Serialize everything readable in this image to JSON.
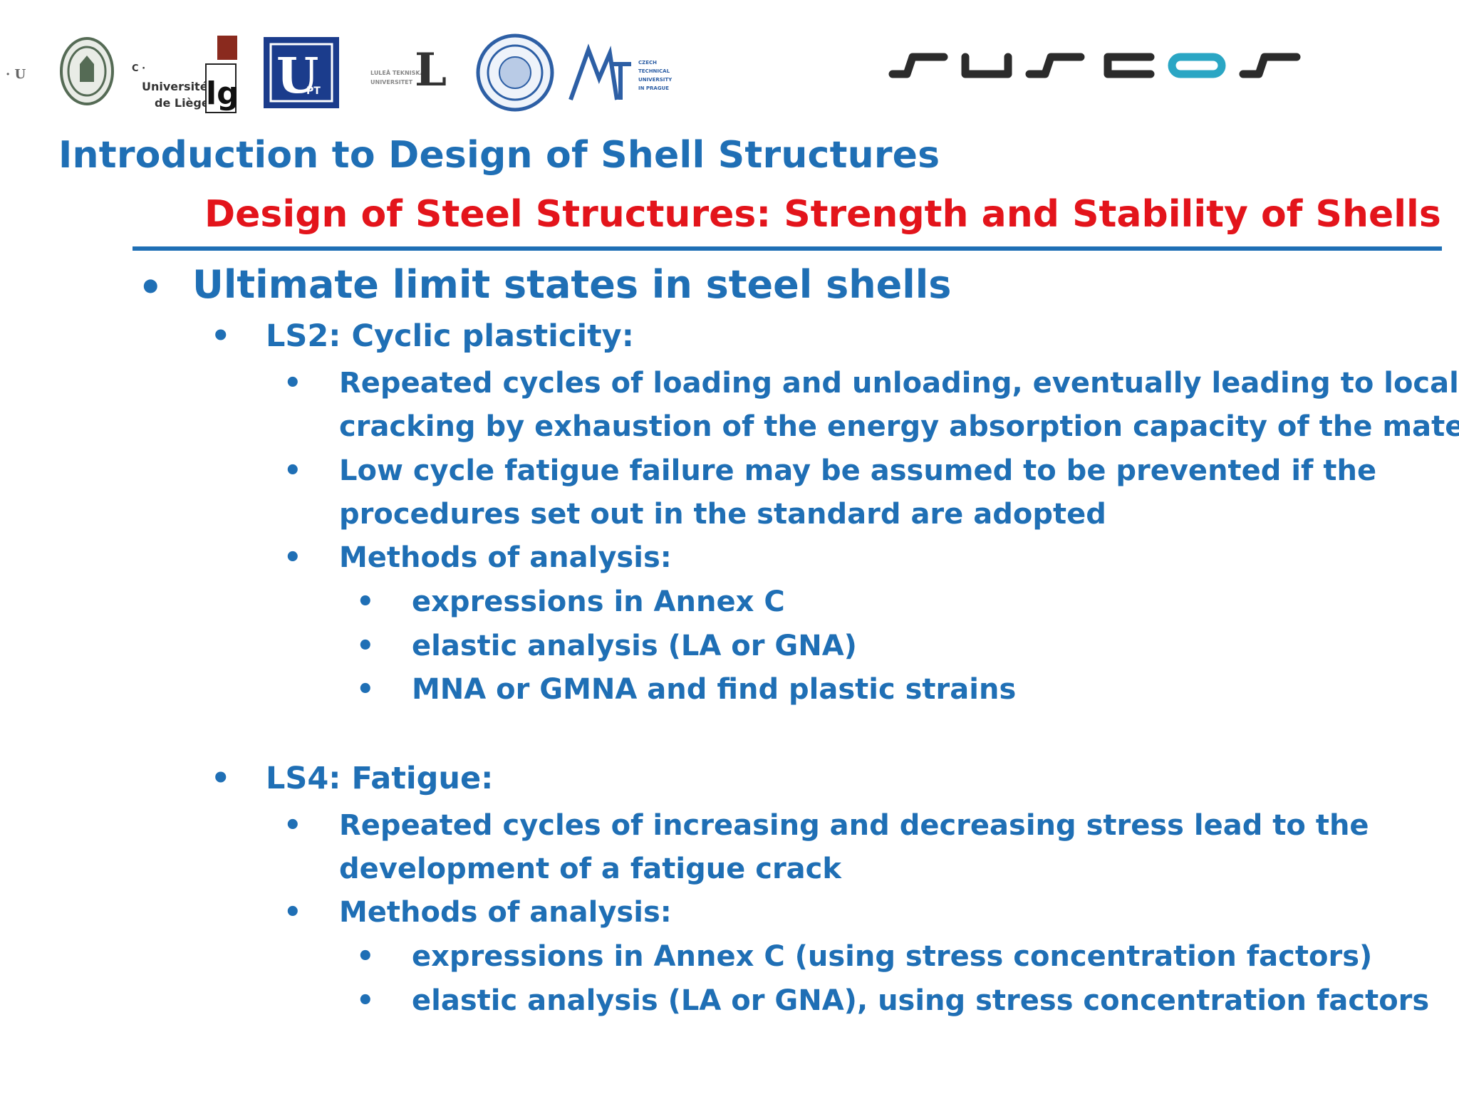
{
  "header": {
    "logos": [
      {
        "icon": "university-seal-icon"
      },
      {
        "icon": "ulg-logo-icon",
        "text": "Université de Liège"
      },
      {
        "icon": "upt-logo-icon",
        "text": "UT"
      },
      {
        "icon": "lulea-logo-icon",
        "text": "L"
      },
      {
        "icon": "naples-seal-icon"
      },
      {
        "icon": "ctu-prague-logo-icon"
      }
    ],
    "brand_logo": "suscos-logo-icon",
    "accent_color": "#1f6fb5",
    "brand_teal": "#2aa6c4"
  },
  "slide": {
    "title": "Introduction to Design of Shell Structures",
    "subtitle": "Design of Steel Structures: Strength and Stability of Shells",
    "title_color": "#1f6fb5",
    "subtitle_color": "#e3141b",
    "bullet": "•",
    "main_bullet": "Ultimate limit states in steel shells",
    "ls2": {
      "heading": "LS2: Cyclic plasticity:",
      "point1_line1": "Repeated cycles of loading and unloading, eventually leading to local",
      "point1_line2": "cracking by exhaustion of the energy absorption capacity of the material",
      "point2_line1": "Low cycle fatigue failure may be assumed to be prevented if the",
      "point2_line2": "procedures set out in the standard are adopted",
      "methods_heading": "Methods of analysis:",
      "methods": [
        "expressions in Annex C",
        "elastic analysis (LA or GNA)",
        "MNA or GMNA and find plastic strains"
      ]
    },
    "ls4": {
      "heading": "LS4: Fatigue:",
      "point1_line1": "Repeated cycles of increasing and decreasing stress lead to the",
      "point1_line2": "development of a fatigue crack",
      "methods_heading": "Methods of analysis:",
      "methods": [
        "expressions in Annex C (using stress concentration factors)",
        "elastic analysis (LA or GNA), using stress concentration factors"
      ]
    }
  }
}
